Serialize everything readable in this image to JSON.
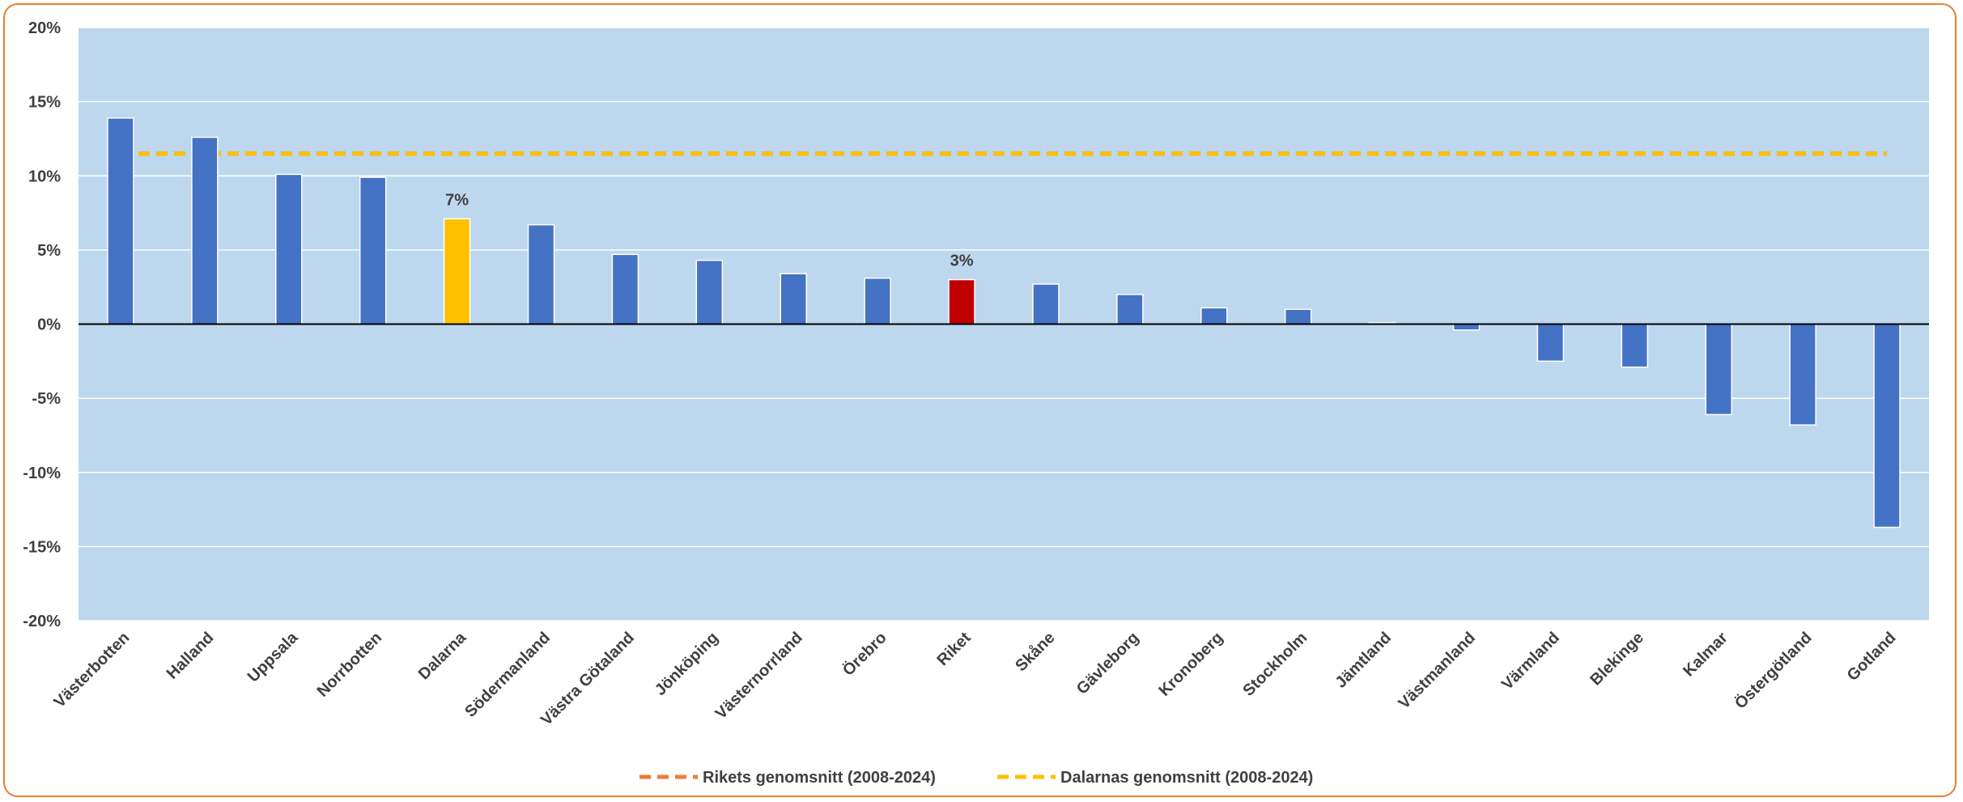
{
  "chart_data": {
    "type": "bar",
    "categories": [
      "Västerbotten",
      "Halland",
      "Uppsala",
      "Norrbotten",
      "Dalarna",
      "Södermanland",
      "Västra Götaland",
      "Jönköping",
      "Västernorrland",
      "Örebro",
      "Riket",
      "Skåne",
      "Gävleborg",
      "Kronoberg",
      "Stockholm",
      "Jämtland",
      "Västmanland",
      "Värmland",
      "Blekinge",
      "Kalmar",
      "Östergötland",
      "Gotland"
    ],
    "values": [
      13.9,
      12.6,
      10.1,
      9.9,
      7.1,
      6.7,
      4.7,
      4.3,
      3.4,
      3.1,
      3.0,
      2.7,
      2.0,
      1.1,
      1.0,
      0.1,
      -0.4,
      -2.5,
      -2.9,
      -6.1,
      -6.8,
      -13.7
    ],
    "bar_colors": {
      "default": "#4472C4",
      "Dalarna": "#FFC000",
      "Riket": "#C00000"
    },
    "data_labels": [
      {
        "category": "Dalarna",
        "text": "7%"
      },
      {
        "category": "Riket",
        "text": "3%"
      }
    ],
    "y_ticks": [
      20,
      15,
      10,
      5,
      0,
      -5,
      -10,
      -15,
      -20
    ],
    "y_tick_labels": [
      "20%",
      "15%",
      "10%",
      "5%",
      "0%",
      "-5%",
      "-10%",
      "-15%",
      "-20%"
    ],
    "ylim": [
      -20,
      20
    ],
    "grid": true,
    "plot_background": "#BDD7EE",
    "reference_lines": [
      {
        "name": "Rikets genomsnitt (2008-2024)",
        "value": 11.5,
        "color": "#ED7D31",
        "style": "dashed"
      },
      {
        "name": "Dalarnas genomsnitt (2008-2024)",
        "value": 11.5,
        "color": "#FFC000",
        "style": "dashed"
      }
    ],
    "legend_position": "bottom"
  }
}
